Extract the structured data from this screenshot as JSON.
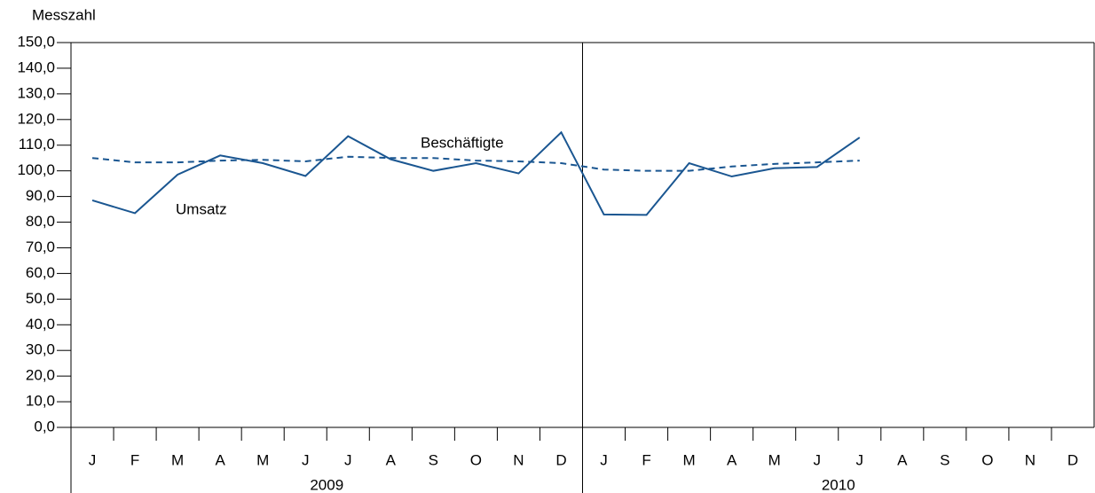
{
  "chart_data": {
    "type": "line",
    "y_axis_label": "Messzahl",
    "categories": [
      "J",
      "F",
      "M",
      "A",
      "M",
      "J",
      "J",
      "A",
      "S",
      "O",
      "N",
      "D",
      "J",
      "F",
      "M",
      "A",
      "M",
      "J",
      "J",
      "A",
      "S",
      "O",
      "N",
      "D"
    ],
    "groups": [
      "2009",
      "2010"
    ],
    "series": [
      {
        "name": "Umsatz",
        "color": "#1a5691",
        "style": "solid",
        "values": [
          88.5,
          83.5,
          98.5,
          106,
          103,
          98,
          113.5,
          104.5,
          100,
          103,
          99,
          115,
          83,
          82.8,
          103,
          97.8,
          101,
          101.5,
          113,
          null,
          null,
          null,
          null,
          null
        ]
      },
      {
        "name": "Beschäftigte",
        "color": "#1a5691",
        "style": "dashed",
        "values": [
          105,
          103.3,
          103.3,
          104,
          104.3,
          103.7,
          105.5,
          105,
          105,
          104,
          103.7,
          103,
          100.5,
          100,
          100,
          101.7,
          102.7,
          103.3,
          104,
          null,
          null,
          null,
          null,
          null
        ]
      }
    ],
    "ylim": [
      0,
      150
    ],
    "yticks": [
      {
        "value": 0,
        "label": "0,0"
      },
      {
        "value": 10,
        "label": "10,0"
      },
      {
        "value": 20,
        "label": "20,0"
      },
      {
        "value": 30,
        "label": "30,0"
      },
      {
        "value": 40,
        "label": "40,0"
      },
      {
        "value": 50,
        "label": "50,0"
      },
      {
        "value": 60,
        "label": "60,0"
      },
      {
        "value": 70,
        "label": "70,0"
      },
      {
        "value": 80,
        "label": "80,0"
      },
      {
        "value": 90,
        "label": "90,0"
      },
      {
        "value": 100,
        "label": "100,0"
      },
      {
        "value": 110,
        "label": "110,0"
      },
      {
        "value": 120,
        "label": "120,0"
      },
      {
        "value": 130,
        "label": "130,0"
      },
      {
        "value": 140,
        "label": "140,0"
      },
      {
        "value": 150,
        "label": "150,0"
      }
    ]
  }
}
